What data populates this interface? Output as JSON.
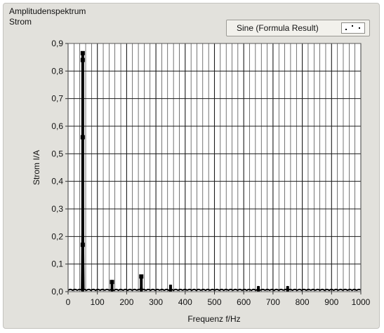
{
  "legend": {
    "label": "Sine (Formula Result)"
  },
  "colors": {
    "plot_bg": "#ffffff",
    "grid": "#1a1a1a",
    "trace": "#000000",
    "panel": "#e2e1dc"
  },
  "chart_data": {
    "type": "line",
    "title": "Amplitudenspektrum",
    "subtitle": "Strom",
    "xlabel": "Frequenz f/Hz",
    "ylabel": "Strom I/A",
    "xlim": [
      0,
      1000
    ],
    "ylim": [
      0,
      0.9
    ],
    "x_ticks": [
      "0",
      "100",
      "200",
      "300",
      "400",
      "500",
      "600",
      "700",
      "800",
      "900",
      "1000"
    ],
    "y_ticks": [
      "0,0",
      "0,1",
      "0,2",
      "0,3",
      "0,4",
      "0,5",
      "0,6",
      "0,7",
      "0,8",
      "0,9"
    ],
    "grid": true,
    "series": [
      {
        "name": "Sine (Formula Result)",
        "peaks": [
          {
            "x": 50,
            "y": 0.87
          },
          {
            "x": 150,
            "y": 0.04
          },
          {
            "x": 250,
            "y": 0.06
          },
          {
            "x": 350,
            "y": 0.025
          },
          {
            "x": 650,
            "y": 0.02
          },
          {
            "x": 750,
            "y": 0.02
          }
        ],
        "noise_floor": 0.008,
        "markers": [
          {
            "x": 50,
            "y": 0.865
          },
          {
            "x": 50,
            "y": 0.84
          },
          {
            "x": 50,
            "y": 0.56
          },
          {
            "x": 50,
            "y": 0.17
          },
          {
            "x": 150,
            "y": 0.035
          },
          {
            "x": 250,
            "y": 0.055
          }
        ]
      }
    ]
  }
}
